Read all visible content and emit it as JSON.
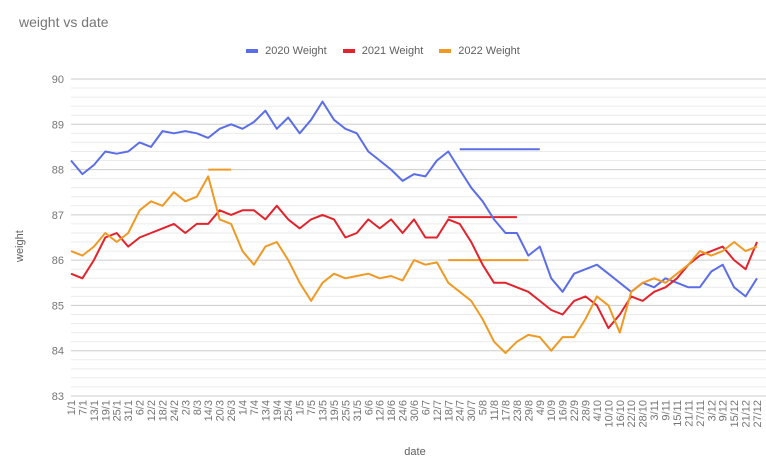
{
  "title": "weight vs date",
  "legend": [
    {
      "label": "2020 Weight",
      "color": "#5b6ee8"
    },
    {
      "label": "2021 Weight",
      "color": "#e3232c"
    },
    {
      "label": "2022 Weight",
      "color": "#ef9a24"
    }
  ],
  "axes": {
    "xlabel": "date",
    "ylabel": "weight"
  },
  "chart_data": {
    "type": "line",
    "title": "weight vs date",
    "xlabel": "date",
    "ylabel": "weight",
    "ylim": [
      83,
      90
    ],
    "yticks": [
      83,
      84,
      85,
      86,
      87,
      88,
      89,
      90
    ],
    "grid": true,
    "legend_position": "top",
    "categories": [
      "1/1",
      "7/1",
      "13/1",
      "19/1",
      "25/1",
      "31/1",
      "6/2",
      "12/2",
      "18/2",
      "24/2",
      "2/3",
      "8/3",
      "14/3",
      "20/3",
      "26/3",
      "1/4",
      "7/4",
      "13/4",
      "19/4",
      "25/4",
      "1/5",
      "7/5",
      "13/5",
      "19/5",
      "25/5",
      "31/5",
      "6/6",
      "12/6",
      "18/6",
      "24/6",
      "30/6",
      "6/7",
      "12/7",
      "18/7",
      "24/7",
      "30/7",
      "5/8",
      "11/8",
      "17/8",
      "23/8",
      "29/8",
      "4/9",
      "10/9",
      "16/9",
      "22/9",
      "28/9",
      "4/10",
      "10/10",
      "16/10",
      "22/10",
      "28/10",
      "3/11",
      "9/11",
      "15/11",
      "21/11",
      "27/11",
      "3/12",
      "9/12",
      "15/12",
      "21/12",
      "27/12"
    ],
    "series": [
      {
        "name": "2020 Weight",
        "color": "#5b6ee8",
        "values": [
          88.2,
          87.9,
          88.1,
          88.4,
          88.35,
          88.4,
          88.6,
          88.5,
          88.85,
          88.8,
          88.85,
          88.8,
          88.7,
          88.9,
          89.0,
          88.9,
          89.05,
          89.3,
          88.9,
          89.15,
          88.8,
          89.1,
          89.5,
          89.1,
          88.9,
          88.8,
          88.4,
          88.2,
          88.0,
          87.75,
          87.9,
          87.85,
          88.2,
          88.4,
          88.0,
          87.6,
          87.3,
          86.9,
          86.6,
          86.6,
          86.1,
          86.3,
          85.6,
          85.3,
          85.7,
          85.8,
          85.9,
          85.7,
          85.5,
          85.3,
          85.5,
          85.4,
          85.6,
          85.5,
          85.4,
          85.4,
          85.75,
          85.9,
          85.4,
          85.2,
          85.6
        ]
      },
      {
        "name": "2021 Weight",
        "color": "#e3232c",
        "values": [
          85.7,
          85.6,
          86.0,
          86.5,
          86.6,
          86.3,
          86.5,
          86.6,
          86.7,
          86.8,
          86.6,
          86.8,
          86.8,
          87.1,
          87.0,
          87.1,
          87.1,
          86.9,
          87.2,
          86.9,
          86.7,
          86.9,
          87.0,
          86.9,
          86.5,
          86.6,
          86.9,
          86.7,
          86.9,
          86.6,
          86.9,
          86.5,
          86.5,
          86.9,
          86.8,
          86.4,
          85.9,
          85.5,
          85.5,
          85.4,
          85.3,
          85.1,
          84.9,
          84.8,
          85.1,
          85.2,
          85.0,
          84.5,
          84.8,
          85.2,
          85.1,
          85.3,
          85.4,
          85.6,
          85.9,
          86.1,
          86.2,
          86.3,
          86.0,
          85.8,
          86.4
        ]
      },
      {
        "name": "2022 Weight",
        "color": "#ef9a24",
        "values": [
          86.2,
          86.1,
          86.3,
          86.6,
          86.4,
          86.6,
          87.1,
          87.3,
          87.2,
          87.5,
          87.3,
          87.4,
          87.85,
          86.9,
          86.8,
          86.2,
          85.9,
          86.3,
          86.4,
          86.0,
          85.5,
          85.1,
          85.5,
          85.7,
          85.6,
          85.65,
          85.7,
          85.6,
          85.65,
          85.55,
          86.0,
          85.9,
          85.95,
          85.5,
          85.3,
          85.1,
          84.7,
          84.2,
          83.95,
          84.2,
          84.35,
          84.3,
          84.0,
          84.3,
          84.3,
          84.7,
          85.2,
          85.0,
          84.4,
          85.3,
          85.5,
          85.6,
          85.5,
          85.7,
          85.9,
          86.2,
          86.1,
          86.2,
          86.4,
          86.2,
          86.3
        ]
      }
    ],
    "reference_lines": [
      {
        "series": "2020 Weight",
        "value": 88.45,
        "from": "24/7",
        "to": "4/9"
      },
      {
        "series": "2021 Weight",
        "value": 86.95,
        "from": "18/7",
        "to": "23/8"
      },
      {
        "series": "2022 Weight",
        "value": 86.0,
        "from": "18/7",
        "to": "29/8"
      },
      {
        "series": "2022 Weight",
        "value": 88.0,
        "from": "14/3",
        "to": "26/3"
      }
    ]
  }
}
